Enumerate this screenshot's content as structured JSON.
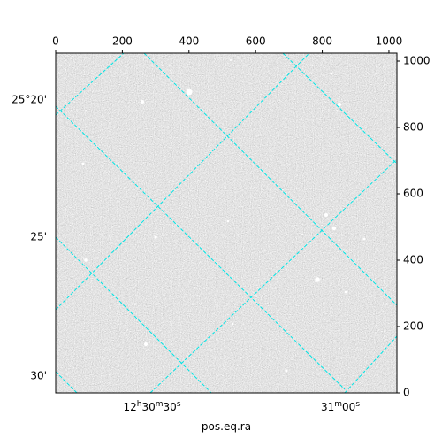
{
  "chart_data": {
    "type": "image",
    "xlabel": "pos.eq.ra",
    "xlim": [
      0,
      1024
    ],
    "xticks": [
      0,
      200,
      400,
      600,
      800,
      1000
    ],
    "ylim": [
      0,
      1024
    ],
    "yticks": [
      0,
      200,
      400,
      600,
      800,
      1000
    ],
    "dec_ticks": [
      {
        "value": 25.3333,
        "label": "25°20'"
      },
      {
        "value": 25.4167,
        "label": "25'"
      },
      {
        "value": 25.5,
        "label": "30'"
      }
    ],
    "ra_ticks": [
      {
        "value": 187.625,
        "label": "12h30m30s"
      },
      {
        "value": 187.75,
        "label": "31m00s"
      }
    ],
    "grid": true,
    "grid_color": "#00e5e5"
  }
}
